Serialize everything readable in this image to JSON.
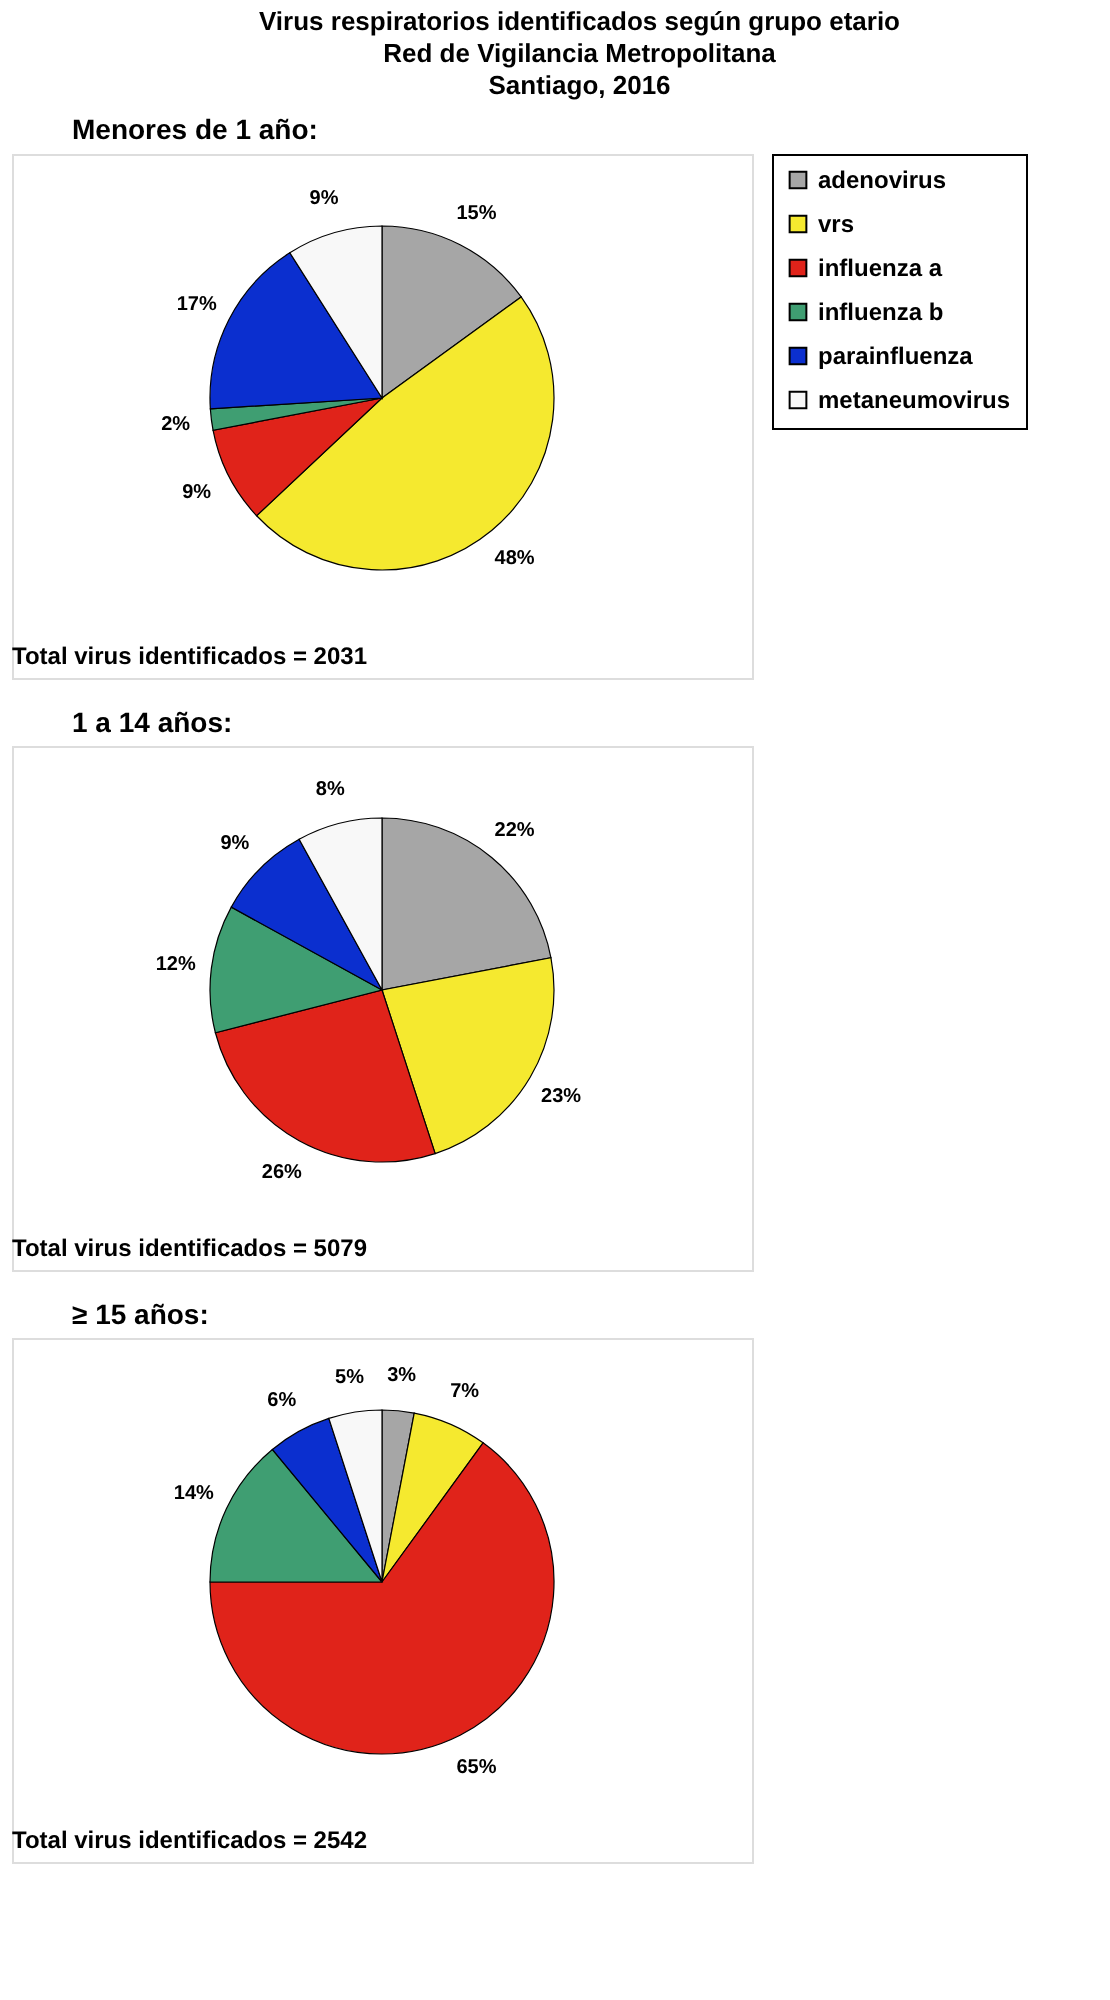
{
  "chart_data": [
    {
      "type": "pie",
      "title": "Virus respiratorios identificados según grupo etario\nRed de Vigilancia Metropolitana\nSantiago, 2016",
      "subtitle": "Menores de 1 año:",
      "categories": [
        "adenovirus",
        "vrs",
        "influenza a",
        "influenza b",
        "parainfluenza",
        "metaneumovirus"
      ],
      "values": [
        15,
        48,
        9,
        2,
        17,
        9
      ],
      "value_labels": [
        "15%",
        "48%",
        "9%",
        "2%",
        "17%",
        "9%"
      ],
      "colors": [
        "#a6a6a6",
        "#f5e92f",
        "#e0231a",
        "#3f9e72",
        "#0b2fcf",
        "#f8f8f8"
      ],
      "legend": "right",
      "annotations": [
        "Total virus identificados = 2031"
      ]
    },
    {
      "type": "pie",
      "subtitle": "1 a 14 años:",
      "categories": [
        null,
        null,
        null,
        null,
        null,
        null
      ],
      "values": [
        22,
        23,
        26,
        12,
        9,
        8
      ],
      "value_labels": [
        "22%",
        "23%",
        "26%",
        "12%",
        "9%",
        "8%"
      ],
      "colors": [
        "#a6a6a6",
        "#f5e92f",
        "#e0231a",
        "#3f9e72",
        "#0b2fcf",
        "#f8f8f8"
      ],
      "legend": false,
      "annotations": [
        "Total virus identificados = 5079"
      ]
    },
    {
      "type": "pie",
      "subtitle": "≥ 15 años:",
      "categories": [
        null,
        null,
        null,
        null,
        null,
        null
      ],
      "values": [
        3,
        7,
        65,
        14,
        6,
        5
      ],
      "value_labels": [
        "3%",
        "7%",
        "65%",
        "14%",
        "6%",
        "5%"
      ],
      "colors": [
        "#a6a6a6",
        "#f5e92f",
        "#e0231a",
        "#3f9e72",
        "#0b2fcf",
        "#f8f8f8"
      ],
      "legend": false,
      "annotations": [
        "Total virus identificados = 2542"
      ]
    }
  ]
}
